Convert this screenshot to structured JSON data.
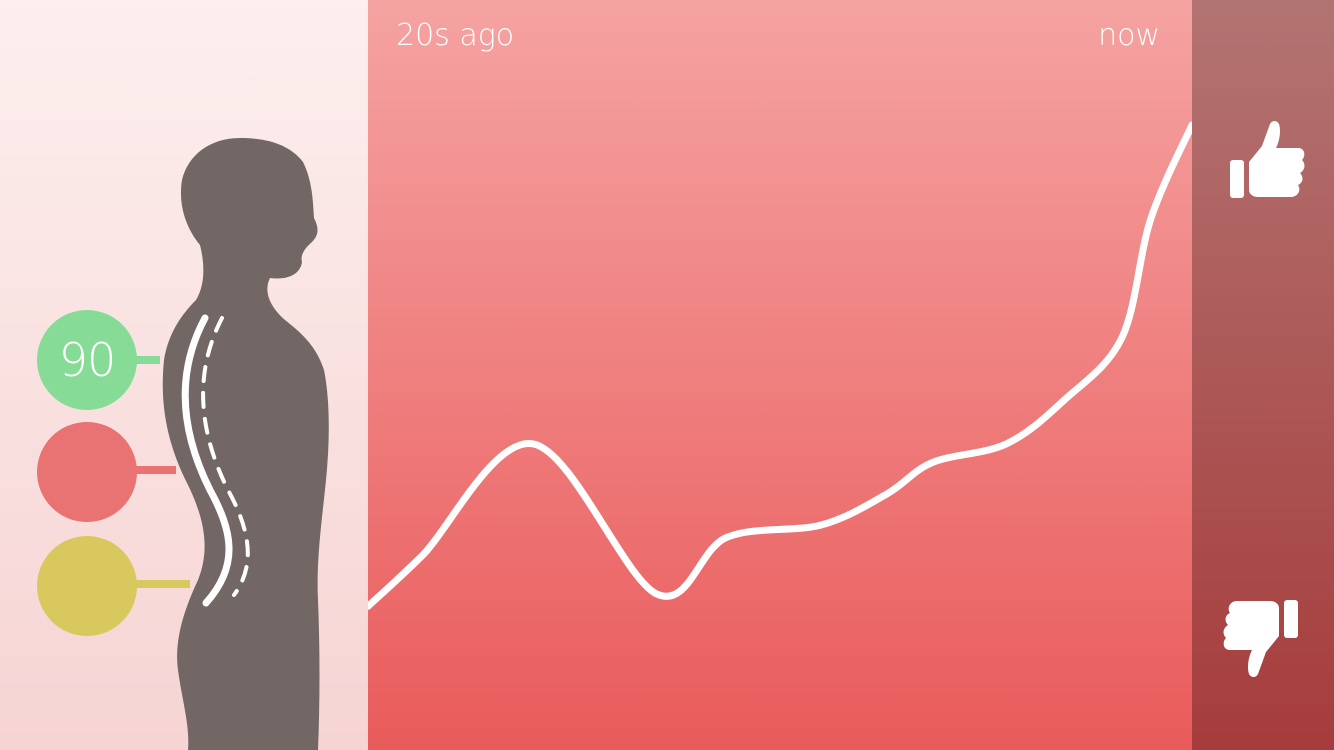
{
  "sensors": [
    {
      "value": "90",
      "color": "#86dc96"
    },
    {
      "value": "",
      "color": "#e97272"
    },
    {
      "value": "",
      "color": "#d9c85e"
    }
  ],
  "silhouette_color": "#726765",
  "chart": {
    "start_label": "20s ago",
    "end_label": "now",
    "line_color": "#ffffff"
  },
  "feedback": {
    "up_icon": "thumbs-up-icon",
    "down_icon": "thumbs-down-icon"
  },
  "chart_data": {
    "type": "line",
    "x": [
      -20,
      -18.7,
      -16,
      -13,
      -11.3,
      -9,
      -7.4,
      -6.3,
      -4.5,
      -3.1,
      -1.7,
      -1,
      0
    ],
    "values": [
      0.23,
      0.31,
      0.49,
      0.25,
      0.34,
      0.36,
      0.41,
      0.46,
      0.49,
      0.56,
      0.66,
      0.85,
      1.0
    ],
    "title": "",
    "xlabel": "",
    "ylabel": "",
    "ylim": [
      0,
      1.2
    ],
    "grid": false
  }
}
